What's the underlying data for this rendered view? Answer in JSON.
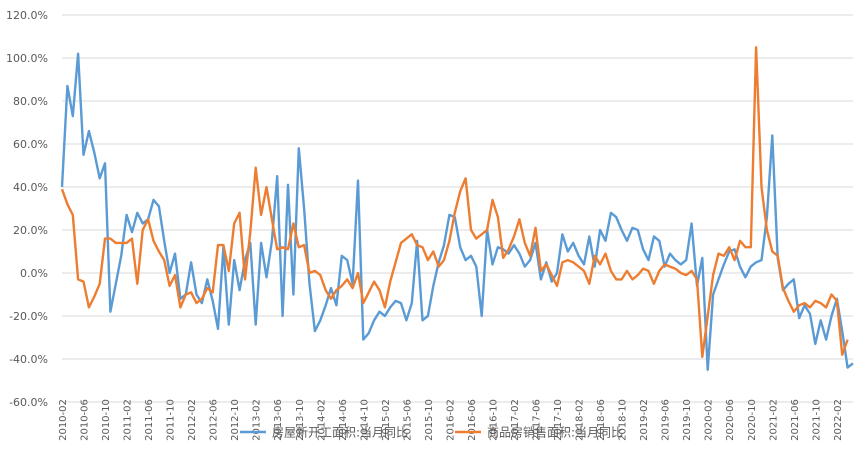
{
  "chart_data": {
    "type": "line",
    "ylim": [
      -60,
      120
    ],
    "y_ticks": [
      -60,
      -40,
      -20,
      0,
      20,
      40,
      60,
      80,
      100,
      120
    ],
    "y_tick_labels": [
      "-60.0%",
      "-40.0%",
      "-20.0%",
      "0.0%",
      "20.0%",
      "40.0%",
      "60.0%",
      "80.0%",
      "100.0%",
      "120.0%"
    ],
    "grid": "horizontal",
    "legend_position": "bottom",
    "x_start": "2010-02",
    "x_tick_labels": [
      "2010-02",
      "2010-06",
      "2010-10",
      "2011-02",
      "2011-06",
      "2011-10",
      "2012-02",
      "2012-06",
      "2012-10",
      "2013-02",
      "2013-06",
      "2013-10",
      "2014-02",
      "2014-06",
      "2014-10",
      "2015-02",
      "2015-06",
      "2015-10",
      "2016-02",
      "2016-06",
      "2016-10",
      "2017-02",
      "2017-06",
      "2017-10",
      "2018-02",
      "2018-06",
      "2018-10",
      "2019-02",
      "2019-06",
      "2019-10",
      "2020-02",
      "2020-06",
      "2020-10",
      "2021-02",
      "2021-06",
      "2021-10",
      "2022-02"
    ],
    "series": [
      {
        "name": "房屋新开工面积:当月同比",
        "color": "#5B9BD5",
        "values": [
          40,
          87,
          73,
          102,
          55,
          66,
          56,
          44,
          51,
          -18,
          -5,
          8,
          27,
          19,
          28,
          23,
          25,
          34,
          31,
          15,
          0,
          9,
          -12,
          -10,
          5,
          -10,
          -14,
          -3,
          -13,
          -26,
          12,
          -24,
          6,
          -8,
          6,
          14,
          -24,
          14,
          -2,
          15,
          45,
          -20,
          41,
          -10,
          58,
          30,
          -5,
          -27,
          -22,
          -15,
          -7,
          -15,
          8,
          6,
          -5,
          43,
          -31,
          -28,
          -22,
          -18,
          -20,
          -16,
          -13,
          -14,
          -22,
          -14,
          15,
          -22,
          -20,
          -6,
          5,
          13,
          27,
          26,
          12,
          6,
          8,
          3,
          -20,
          20,
          4,
          12,
          11,
          9,
          13,
          9,
          3,
          6,
          14,
          -3,
          5,
          -4,
          0,
          18,
          10,
          14,
          8,
          4,
          17,
          3,
          20,
          15,
          28,
          26,
          20,
          15,
          21,
          20,
          11,
          6,
          17,
          15,
          3,
          9,
          6,
          4,
          6,
          23,
          -6,
          7,
          -45,
          -10,
          -3,
          4,
          10,
          11,
          3,
          -2,
          3,
          5,
          6,
          26,
          64,
          7,
          -8,
          -5,
          -3,
          -21,
          -15,
          -19,
          -33,
          -22,
          -31,
          -20,
          -12,
          -27,
          -44,
          -42
        ]
      },
      {
        "name": "商品房销售面积:当月同比",
        "color": "#ED7D31",
        "values": [
          39,
          32,
          27,
          -3,
          -4,
          -16,
          -11,
          -5,
          16,
          16,
          14,
          14,
          14,
          16,
          -5,
          20,
          25,
          15,
          10,
          6,
          -6,
          -1,
          -16,
          -10,
          -9,
          -14,
          -12,
          -7,
          -9,
          13,
          13,
          1,
          23,
          28,
          -3,
          19,
          49,
          27,
          40,
          25,
          11,
          12,
          11,
          23,
          12,
          13,
          0,
          1,
          -1,
          -8,
          -12,
          -8,
          -6,
          -3,
          -7,
          0,
          -14,
          -9,
          -4,
          -8,
          -16,
          -4,
          5,
          14,
          16,
          18,
          13,
          12,
          6,
          10,
          3,
          6,
          15,
          28,
          38,
          44,
          20,
          16,
          18,
          20,
          34,
          26,
          7,
          11,
          17,
          25,
          14,
          8,
          21,
          1,
          4,
          -1,
          -6,
          5,
          6,
          5,
          3,
          1,
          -5,
          8,
          4,
          9,
          1,
          -3,
          -3,
          1,
          -3,
          -1,
          2,
          1,
          -5,
          1,
          4,
          3,
          2,
          0,
          -1,
          1,
          -3,
          -39,
          -20,
          -1,
          9,
          8,
          12,
          6,
          15,
          12,
          12,
          105,
          40,
          20,
          10,
          8,
          -7,
          -13,
          -18,
          -15,
          -14,
          -16,
          -13,
          -14,
          -16,
          -10,
          -13,
          -38,
          -31
        ]
      }
    ]
  }
}
